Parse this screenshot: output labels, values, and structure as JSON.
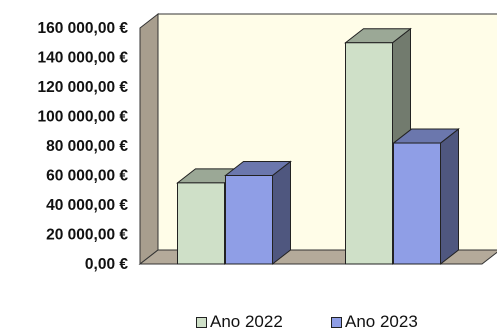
{
  "chart_data": {
    "type": "bar",
    "categories": [
      "",
      ""
    ],
    "series": [
      {
        "name": "Ano 2022",
        "values": [
          55000,
          150000
        ],
        "color": "#cfe0c8"
      },
      {
        "name": "Ano 2023",
        "values": [
          60000,
          82000
        ],
        "color": "#8f9ee6"
      }
    ],
    "y_ticks": [
      "0,00 €",
      "20 000,00 €",
      "40 000,00 €",
      "60 000,00 €",
      "80 000,00 €",
      "100 000,00 €",
      "120 000,00 €",
      "140 000,00 €",
      "160 000,00 €"
    ],
    "ylim": [
      0,
      160000
    ],
    "title": "",
    "xlabel": "",
    "ylabel": "",
    "style": "3d-clustered-column",
    "grid": false,
    "legend_position": "bottom",
    "wall_color": "#fffde8",
    "floor_color": "#b4aa9a"
  }
}
